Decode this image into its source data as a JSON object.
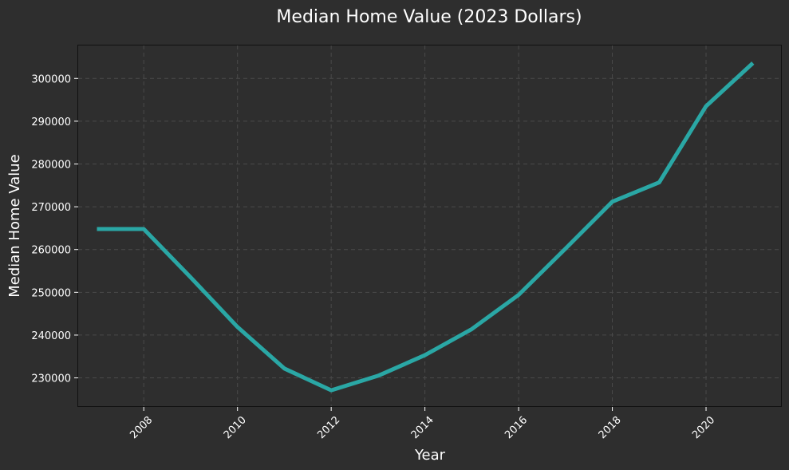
{
  "chart_data": {
    "type": "line",
    "title": "Median Home Value (2023 Dollars)",
    "xlabel": "Year",
    "ylabel": "Median Home Value",
    "xlim": [
      2006.6,
      2021.6
    ],
    "ylim": [
      223200,
      307700
    ],
    "xticks": [
      2008,
      2010,
      2012,
      2014,
      2016,
      2018,
      2020
    ],
    "yticks": [
      230000,
      240000,
      250000,
      260000,
      270000,
      280000,
      290000,
      300000
    ],
    "grid": true,
    "series": [
      {
        "color": "#2aa7a5",
        "x": [
          2007,
          2008,
          2009,
          2010,
          2011,
          2012,
          2013,
          2014,
          2015,
          2016,
          2017,
          2018,
          2019,
          2020,
          2021
        ],
        "values": [
          264800,
          264800,
          253500,
          241900,
          232200,
          227100,
          230500,
          235300,
          241400,
          249400,
          260200,
          271200,
          275700,
          293500,
          303600
        ]
      }
    ]
  },
  "colors": {
    "background": "#2e2e2e",
    "plot_background": "#2e2e2e",
    "line": "#2aa7a5",
    "text": "#ffffff",
    "grid": "#4a4a4a"
  }
}
